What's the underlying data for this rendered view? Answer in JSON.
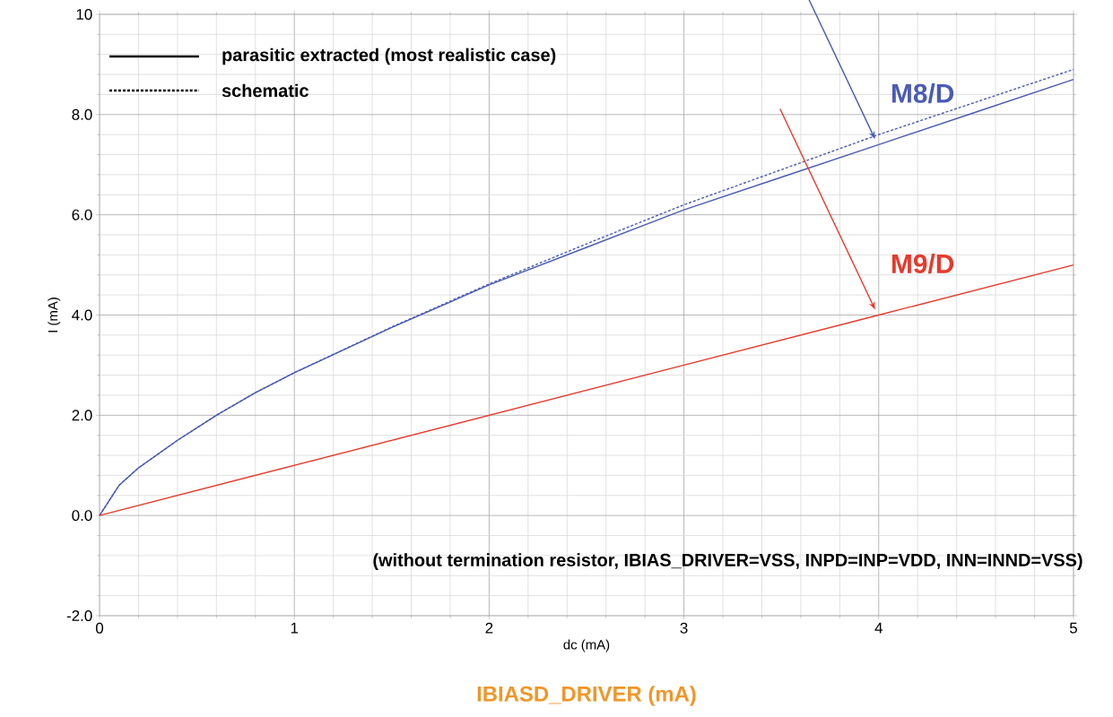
{
  "chart_data": {
    "type": "line",
    "xlabel": "dc (mA)",
    "ylabel": "I (mA)",
    "x": [
      0,
      0.1,
      0.2,
      0.4,
      0.6,
      0.8,
      1,
      1.5,
      2,
      2.5,
      3,
      3.5,
      4,
      4.5,
      5
    ],
    "series": [
      {
        "name": "M8/D",
        "color": "#4a5bb5",
        "line_style": "solid",
        "values": [
          0,
          0.6,
          0.95,
          1.5,
          2.0,
          2.45,
          2.85,
          3.75,
          4.6,
          5.35,
          6.1,
          6.75,
          7.4,
          8.05,
          8.7
        ]
      },
      {
        "color": "#4a5bb5",
        "line_style": "dashed",
        "values": [
          0,
          0.6,
          0.95,
          1.5,
          2.0,
          2.45,
          2.85,
          3.76,
          4.62,
          5.42,
          6.2,
          6.9,
          7.6,
          8.25,
          8.9
        ]
      },
      {
        "name": "M9/D",
        "color": "#e8392c",
        "line_style": "solid",
        "x": [
          0,
          1,
          2,
          3,
          4,
          5
        ],
        "values": [
          0,
          1,
          2,
          3,
          4,
          5
        ]
      }
    ],
    "annotations": [
      "parasitic extracted (most realistic case)",
      "schematic",
      "(without termination resistor, IBIAS_DRIVER=VSS, INPD=INP=VDD, INN=INND=VSS)",
      "IBIASD_DRIVER (mA)"
    ],
    "xlim": [
      0,
      5
    ],
    "ylim": [
      -2,
      10
    ],
    "xticks": [
      0,
      1,
      2,
      3,
      4,
      5
    ],
    "yticks": [
      {
        "value": -2,
        "label": "-2.0"
      },
      {
        "value": 0,
        "label": "0.0"
      },
      {
        "value": 2,
        "label": "2.0"
      },
      {
        "value": 4,
        "label": "4.0"
      },
      {
        "value": 6,
        "label": "6.0"
      },
      {
        "value": 8,
        "label": "8.0"
      },
      10
    ],
    "grid": true,
    "marker": "none"
  }
}
